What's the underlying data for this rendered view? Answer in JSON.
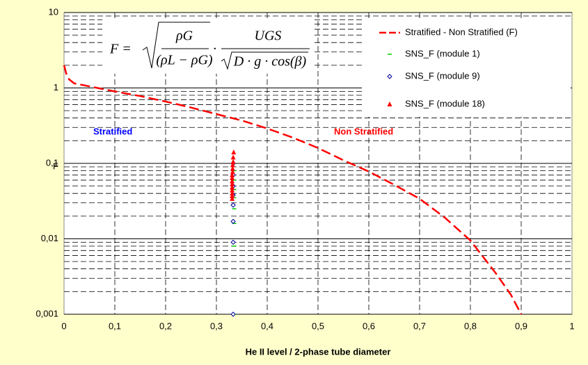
{
  "chart_data": {
    "type": "line",
    "x_label": "He II level / 2-phase tube diameter",
    "y_label": "F",
    "xlim": [
      0,
      1
    ],
    "xticks": [
      0,
      {
        "value": 0.1,
        "label": "0,1"
      },
      {
        "value": 0.2,
        "label": "0,2"
      },
      {
        "value": 0.3,
        "label": "0,3"
      },
      {
        "value": 0.4,
        "label": "0,4"
      },
      {
        "value": 0.5,
        "label": "0,5"
      },
      {
        "value": 0.6,
        "label": "0,6"
      },
      {
        "value": 0.7,
        "label": "0,7"
      },
      {
        "value": 0.8,
        "label": "0,8"
      },
      {
        "value": 0.9,
        "label": "0,9"
      },
      1
    ],
    "ylim": [
      0.001,
      10
    ],
    "yticks": [
      {
        "value": 0.001,
        "label": "0,001"
      },
      {
        "value": 0.01,
        "label": "0,01"
      },
      {
        "value": 0.1,
        "label": "0,1"
      },
      1,
      10
    ],
    "log_y": true,
    "grid": true,
    "minor_grid": true,
    "legend": "upper right",
    "formula": {
      "lhs": "F =",
      "num1": "ρG",
      "den1": "(ρL − ρG)",
      "dot": "·",
      "num2": "UGS",
      "den2": "D · g · cos(β)"
    },
    "annotations": [
      {
        "text": "Stratified",
        "color": "#0000ff"
      },
      {
        "text": "Non Stratified",
        "color": "#ff0000"
      }
    ],
    "series": [
      {
        "name": "Stratified - Non Stratified (F)",
        "type": "line",
        "color": "#ff0000",
        "x": [
          0,
          0.005,
          0.01,
          0.02,
          0.05,
          0.1,
          0.15,
          0.2,
          0.25,
          0.3,
          0.35,
          0.4,
          0.45,
          0.5,
          0.55,
          0.6,
          0.65,
          0.7,
          0.75,
          0.8,
          0.85,
          0.88,
          0.9
        ],
        "values": [
          2.0,
          1.5,
          1.3,
          1.15,
          1.05,
          0.9,
          0.78,
          0.66,
          0.55,
          0.45,
          0.37,
          0.29,
          0.22,
          0.16,
          0.11,
          0.078,
          0.052,
          0.034,
          0.019,
          0.0095,
          0.0035,
          0.0018,
          0.001
        ]
      },
      {
        "name": "SNS_F (module 1)",
        "type": "scatter",
        "marker": "dash",
        "color": "#00cc00",
        "x": [
          0.335,
          0.335,
          0.335,
          0.335,
          0.335,
          0.335,
          0.335,
          0.335
        ],
        "values": [
          0.08,
          0.06,
          0.045,
          0.035,
          0.025,
          0.016,
          0.008,
          0.001
        ]
      },
      {
        "name": "SNS_F (module 9)",
        "type": "scatter",
        "marker": "diamond",
        "color": "#000099",
        "x": [
          0.333,
          0.333,
          0.333,
          0.333,
          0.333,
          0.333,
          0.333,
          0.333
        ],
        "values": [
          0.1,
          0.07,
          0.05,
          0.038,
          0.028,
          0.017,
          0.009,
          0.001
        ]
      },
      {
        "name": "SNS_F (module 18)",
        "type": "scatter",
        "marker": "triangle",
        "color": "#ff0000",
        "x": [
          0.334,
          0.333,
          0.333,
          0.332,
          0.332,
          0.332,
          0.331,
          0.331,
          0.331,
          0.331,
          0.331,
          0.331,
          0.331,
          0.331,
          0.331
        ],
        "values": [
          0.14,
          0.12,
          0.105,
          0.095,
          0.085,
          0.077,
          0.07,
          0.064,
          0.058,
          0.053,
          0.048,
          0.044,
          0.04,
          0.037,
          0.034
        ]
      }
    ]
  }
}
